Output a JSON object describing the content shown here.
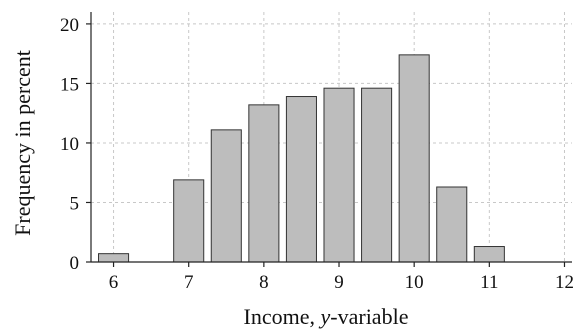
{
  "chart_data": {
    "type": "bar",
    "xlabel_text": "Income, ",
    "xlabel_italic": "y",
    "xlabel_suffix": "-variable",
    "ylabel": "Frequency in percent",
    "x_ticks": [
      6,
      7,
      8,
      9,
      10,
      11,
      12
    ],
    "y_ticks": [
      0,
      5,
      10,
      15,
      20
    ],
    "xlim": [
      5.7,
      12.1
    ],
    "ylim": [
      0,
      21
    ],
    "grid": true,
    "bar_width": 0.8,
    "bins": [
      {
        "x": 6.0,
        "value": 0.7
      },
      {
        "x": 7.0,
        "value": 6.9
      },
      {
        "x": 7.5,
        "value": 11.1
      },
      {
        "x": 8.0,
        "value": 13.2
      },
      {
        "x": 8.5,
        "value": 13.9
      },
      {
        "x": 9.0,
        "value": 14.6
      },
      {
        "x": 9.5,
        "value": 14.6
      },
      {
        "x": 10.0,
        "value": 17.4
      },
      {
        "x": 10.5,
        "value": 6.3
      },
      {
        "x": 11.0,
        "value": 1.3
      }
    ]
  }
}
